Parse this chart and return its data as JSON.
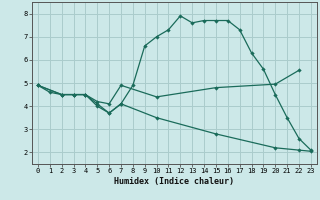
{
  "xlabel": "Humidex (Indice chaleur)",
  "bg_color": "#cce8e8",
  "grid_color": "#aacccc",
  "line_color": "#1a6b5a",
  "xlim": [
    -0.5,
    23.5
  ],
  "ylim": [
    1.5,
    8.5
  ],
  "yticks": [
    2,
    3,
    4,
    5,
    6,
    7,
    8
  ],
  "xticks": [
    0,
    1,
    2,
    3,
    4,
    5,
    6,
    7,
    8,
    9,
    10,
    11,
    12,
    13,
    14,
    15,
    16,
    17,
    18,
    19,
    20,
    21,
    22,
    23
  ],
  "line1_x": [
    0,
    1,
    2,
    3,
    4,
    5,
    6,
    7,
    8,
    9,
    10,
    11,
    12,
    13,
    14,
    15,
    16,
    17,
    18,
    19,
    20,
    21,
    22,
    23
  ],
  "line1_y": [
    4.9,
    4.6,
    4.5,
    4.5,
    4.5,
    4.0,
    3.7,
    4.1,
    4.9,
    6.6,
    7.0,
    7.3,
    7.9,
    7.6,
    7.7,
    7.7,
    7.7,
    7.3,
    6.3,
    5.6,
    4.5,
    3.5,
    2.6,
    2.1
  ],
  "line2_x": [
    0,
    2,
    3,
    4,
    5,
    6,
    7,
    10,
    15,
    20,
    22
  ],
  "line2_y": [
    4.9,
    4.5,
    4.5,
    4.5,
    4.2,
    4.1,
    4.9,
    4.4,
    4.8,
    4.95,
    5.55
  ],
  "line3_x": [
    0,
    2,
    3,
    4,
    5,
    6,
    7,
    10,
    15,
    20,
    22,
    23
  ],
  "line3_y": [
    4.9,
    4.5,
    4.5,
    4.5,
    4.1,
    3.7,
    4.1,
    3.5,
    2.8,
    2.2,
    2.1,
    2.05
  ]
}
